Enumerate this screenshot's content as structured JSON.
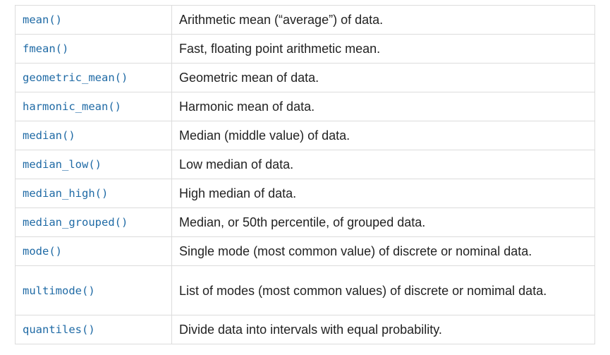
{
  "rows": [
    {
      "fn": "mean()",
      "desc": "Arithmetic mean (“average”) of data."
    },
    {
      "fn": "fmean()",
      "desc": "Fast, floating point arithmetic mean."
    },
    {
      "fn": "geometric_mean()",
      "desc": "Geometric mean of data."
    },
    {
      "fn": "harmonic_mean()",
      "desc": "Harmonic mean of data."
    },
    {
      "fn": "median()",
      "desc": "Median (middle value) of data."
    },
    {
      "fn": "median_low()",
      "desc": "Low median of data."
    },
    {
      "fn": "median_high()",
      "desc": "High median of data."
    },
    {
      "fn": "median_grouped()",
      "desc": "Median, or 50th percentile, of grouped data."
    },
    {
      "fn": "mode()",
      "desc": "Single mode (most common value) of discrete or nominal data."
    },
    {
      "fn": "multimode()",
      "desc": "List of modes (most common values) of discrete or nomimal data."
    },
    {
      "fn": "quantiles()",
      "desc": "Divide data into intervals with equal probability."
    }
  ]
}
